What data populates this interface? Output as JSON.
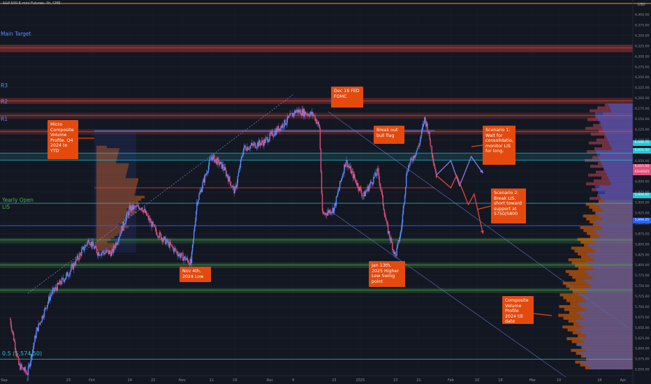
{
  "header": {
    "symbol": "S&P 500 E-mini Futures, 4h, CME",
    "currency": "USD"
  },
  "colors": {
    "background": "#131722",
    "up": "#5b8cff",
    "down": "#e0507a",
    "level_red": "#e8453c",
    "level_cyan": "#1fc9d6",
    "level_green": "#4caf50",
    "level_blue": "#2962ff",
    "note_bg": "#e44a0e",
    "profile_orange": "#ff6d00",
    "profile_blue": "#3a5fd9"
  },
  "levels": {
    "main_target": "Main Target",
    "r3": "R3",
    "r2": "R2",
    "r1": "R1",
    "yearly_open": "Yearly Open",
    "lis": "LIS",
    "fib": "0.5 (5,574.50)"
  },
  "annotations": {
    "micro_profile": "Micro Composite Volume Profile. Q4 2024 to YTD",
    "dec18": "Dec 18 FED FOMC",
    "breakout": "Break out bull flag",
    "scenario1": "Scenario 1: Wait for consolidatio, monitor LIS for long.",
    "scenario2": "Scenario 2: Break LIS, short toward support at 5750/5800",
    "nov4": "Nov 4th, 2024 Low",
    "jan13": "Jan 13th, 2025 Higher Low Swing point",
    "composite_profile": "Composite Volume Profile 2024 till date"
  },
  "price_tags": [
    {
      "label": "6,068.25",
      "color": "#1fc9d6"
    },
    {
      "label": "6,051.50",
      "color": "#1fc9d6"
    },
    {
      "label": "6,015.50",
      "color": "#e0507a"
    },
    {
      "label": "ESH2025",
      "color": "#e0507a"
    },
    {
      "label": "5,948.00",
      "color": "#1fc9d6"
    },
    {
      "label": "5,894.25",
      "color": "#2962ff"
    }
  ],
  "chart_data": {
    "type": "candlestick",
    "title": "S&P 500 E-mini Futures, 4h, CME",
    "xlabel": "",
    "ylabel": "",
    "ylim": [
      5535,
      6415
    ],
    "y_ticks": [
      6400,
      6375,
      6350,
      6325,
      6300,
      6275,
      6250,
      6225,
      6200,
      6175,
      6150,
      6125,
      6100,
      6075,
      6050,
      6025,
      6000,
      5975,
      5950,
      5925,
      5900,
      5875,
      5850,
      5825,
      5800,
      5775,
      5750,
      5725,
      5700,
      5675,
      5650,
      5625,
      5600,
      5575,
      5550
    ],
    "x_ticks": [
      "Sep",
      "9",
      "23",
      "Oct",
      "14",
      "22",
      "Nov",
      "11",
      "19",
      "Dec",
      "9",
      "23",
      "2025",
      "13",
      "21",
      "Feb",
      "10",
      "18",
      "Mar",
      "10",
      "24",
      "Apr"
    ],
    "price_path": [
      [
        "2024-09-03",
        5670
      ],
      [
        "2024-09-06",
        5560
      ],
      [
        "2024-09-09",
        5540
      ],
      [
        "2024-09-12",
        5640
      ],
      [
        "2024-09-17",
        5730
      ],
      [
        "2024-09-23",
        5780
      ],
      [
        "2024-09-30",
        5860
      ],
      [
        "2024-10-03",
        5830
      ],
      [
        "2024-10-08",
        5830
      ],
      [
        "2024-10-14",
        5935
      ],
      [
        "2024-10-18",
        5940
      ],
      [
        "2024-10-23",
        5880
      ],
      [
        "2024-10-31",
        5825
      ],
      [
        "2024-11-04",
        5805
      ],
      [
        "2024-11-06",
        5950
      ],
      [
        "2024-11-11",
        6060
      ],
      [
        "2024-11-15",
        6035
      ],
      [
        "2024-11-19",
        5975
      ],
      [
        "2024-11-22",
        6080
      ],
      [
        "2024-11-29",
        6095
      ],
      [
        "2024-12-06",
        6140
      ],
      [
        "2024-12-10",
        6170
      ],
      [
        "2024-12-16",
        6160
      ],
      [
        "2024-12-18",
        6130
      ],
      [
        "2024-12-19",
        5920
      ],
      [
        "2024-12-23",
        5935
      ],
      [
        "2024-12-27",
        6050
      ],
      [
        "2025-01-02",
        5965
      ],
      [
        "2025-01-07",
        6025
      ],
      [
        "2025-01-10",
        5895
      ],
      [
        "2025-01-13",
        5820
      ],
      [
        "2025-01-15",
        5885
      ],
      [
        "2025-01-17",
        6030
      ],
      [
        "2025-01-21",
        6085
      ],
      [
        "2025-01-23",
        6150
      ],
      [
        "2025-01-24",
        6130
      ],
      [
        "2025-01-27",
        6015
      ]
    ],
    "horizontal_levels": [
      {
        "name": "Main Target",
        "price": 6320
      },
      {
        "name": "R3",
        "price": 6193
      },
      {
        "name": "R2",
        "price": 6158
      },
      {
        "name": "R1",
        "price": 6120
      },
      {
        "name": "6,068.25",
        "price": 6068.25
      },
      {
        "name": "6,051.50",
        "price": 6051.5
      },
      {
        "name": "5,948.00",
        "price": 5948
      },
      {
        "name": "Yearly Open / LIS",
        "price": 5894.25
      },
      {
        "name": "support",
        "price": 5860
      },
      {
        "name": "support",
        "price": 5800
      },
      {
        "name": "support",
        "price": 5740
      },
      {
        "name": "0.5 (5,574.50)",
        "price": 5574.5
      }
    ],
    "projections": [
      {
        "name": "Scenario 1",
        "points": [
          [
            "2025-01-27",
            6015
          ],
          [
            "2025-02-01",
            6050
          ],
          [
            "2025-02-04",
            5990
          ],
          [
            "2025-02-08",
            6060
          ],
          [
            "2025-02-12",
            6020
          ]
        ]
      },
      {
        "name": "Scenario 2",
        "points": [
          [
            "2025-01-27",
            6015
          ],
          [
            "2025-02-01",
            5985
          ],
          [
            "2025-02-03",
            6015
          ],
          [
            "2025-02-07",
            5945
          ],
          [
            "2025-02-09",
            5970
          ],
          [
            "2025-02-12",
            5875
          ]
        ]
      }
    ],
    "legend": "none",
    "grid": true
  }
}
